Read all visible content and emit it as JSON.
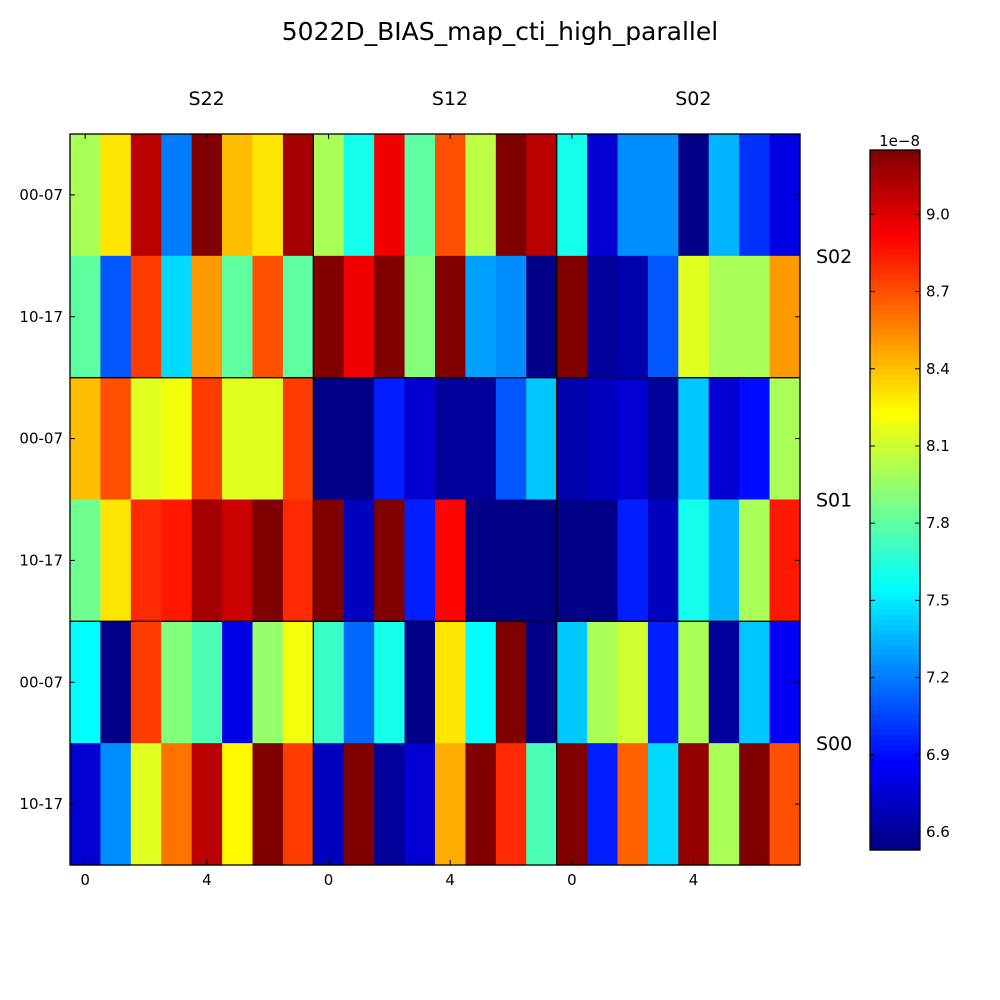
{
  "chart_data": {
    "type": "heatmap",
    "title": "5022D_BIAS_map_cti_high_parallel",
    "column_sensors": [
      "S22",
      "S12",
      "S02"
    ],
    "row_sensors": [
      "S02",
      "S01",
      "S00"
    ],
    "y_tick_labels": [
      "00-07",
      "10-17",
      "00-07",
      "10-17",
      "00-07",
      "10-17"
    ],
    "x_tick_labels": [
      "0",
      "4",
      "0",
      "4",
      "0",
      "4"
    ],
    "colorbar": {
      "colormap": "jet",
      "offset_label": "1e−8",
      "vmin": 6.53,
      "vmax": 9.25,
      "ticks": [
        "6.6",
        "6.9",
        "7.2",
        "7.5",
        "7.8",
        "8.1",
        "8.4",
        "8.7",
        "9.0"
      ],
      "tick_values": [
        6.6,
        6.9,
        7.2,
        7.5,
        7.8,
        8.1,
        8.4,
        8.7,
        9.0
      ]
    },
    "values_scale": "1e-8",
    "values": [
      [
        8.0,
        8.3,
        9.1,
        7.2,
        9.25,
        8.4,
        8.3,
        9.15,
        8.0,
        7.6,
        8.95,
        7.8,
        8.7,
        8.05,
        9.25,
        9.1,
        7.6,
        6.75,
        7.25,
        7.25,
        6.55,
        7.35,
        7.0,
        6.8
      ],
      [
        7.8,
        7.1,
        8.75,
        7.45,
        8.5,
        7.8,
        8.7,
        7.8,
        9.25,
        8.95,
        9.25,
        7.9,
        9.25,
        7.3,
        7.25,
        6.55,
        9.25,
        6.6,
        6.65,
        7.1,
        8.15,
        8.0,
        8.0,
        8.5
      ],
      [
        8.4,
        8.7,
        8.15,
        8.2,
        8.75,
        8.15,
        8.15,
        8.75,
        6.55,
        6.55,
        6.95,
        6.75,
        6.6,
        6.6,
        7.1,
        7.4,
        6.65,
        6.7,
        6.75,
        6.6,
        7.4,
        6.75,
        6.9,
        8.0
      ],
      [
        7.85,
        8.3,
        8.8,
        8.85,
        9.15,
        9.05,
        9.25,
        8.8,
        9.25,
        6.7,
        9.25,
        6.95,
        8.9,
        6.55,
        6.55,
        6.55,
        6.55,
        6.55,
        6.95,
        6.7,
        7.6,
        7.35,
        8.0,
        8.85
      ],
      [
        7.55,
        6.55,
        8.75,
        7.9,
        7.75,
        6.8,
        7.95,
        8.2,
        7.7,
        7.15,
        7.6,
        6.55,
        8.3,
        7.55,
        9.25,
        6.55,
        7.4,
        8.0,
        8.1,
        6.95,
        8.0,
        6.6,
        7.4,
        6.85
      ],
      [
        6.75,
        7.25,
        8.15,
        8.6,
        9.1,
        8.25,
        9.25,
        8.75,
        6.7,
        9.25,
        6.6,
        6.75,
        8.45,
        9.25,
        8.8,
        7.75,
        9.25,
        6.95,
        8.65,
        7.45,
        9.2,
        8.0,
        9.25,
        8.7
      ]
    ]
  }
}
